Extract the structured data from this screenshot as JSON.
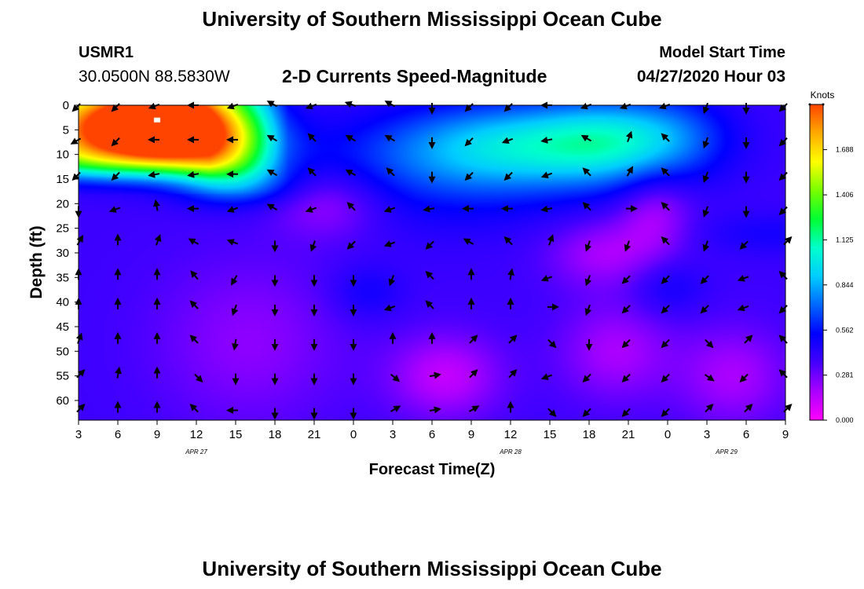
{
  "header": {
    "title": "University of Southern Mississippi Ocean Cube",
    "station": "USMR1",
    "coords": "30.0500N 88.5830W",
    "subtitle": "2-D Currents Speed-Magnitude",
    "model_label": "Model Start Time",
    "model_time": "04/27/2020 Hour 03"
  },
  "footer": {
    "title": "University of Southern Mississippi Ocean Cube"
  },
  "chart_data": {
    "type": "heatmap",
    "xlabel": "Forecast Time(Z)",
    "ylabel": "Depth (ft)",
    "x_tick_labels": [
      "3",
      "6",
      "9",
      "12",
      "15",
      "18",
      "21",
      "0",
      "3",
      "6",
      "9",
      "12",
      "15",
      "18",
      "21",
      "0",
      "3",
      "6",
      "9"
    ],
    "date_labels": [
      {
        "text": "APR 27",
        "tick_index": 3
      },
      {
        "text": "APR 28",
        "tick_index": 11
      },
      {
        "text": "APR 29",
        "tick_index": 16.5
      }
    ],
    "y_ticks": [
      0,
      5,
      10,
      15,
      20,
      25,
      30,
      35,
      40,
      45,
      50,
      55,
      60
    ],
    "ylim": [
      0,
      64
    ],
    "colorbar": {
      "title": "Knots",
      "ticks": [
        "0.000",
        "0.281",
        "0.562",
        "0.844",
        "1.125",
        "1.406",
        "1.688"
      ],
      "range": [
        0,
        1.97
      ],
      "colors": [
        "#ff00ff",
        "#aa00ff",
        "#4400ff",
        "#0000ff",
        "#0066ff",
        "#00ccff",
        "#00ffcc",
        "#00ff33",
        "#77ff00",
        "#ffff00",
        "#ffaa00",
        "#ff4400"
      ]
    },
    "speed_blobs": [
      {
        "t": 9,
        "d": 3,
        "sx": 2.4,
        "sd": 4.5,
        "v": 1.3,
        "note": "surface maximum"
      },
      {
        "t": 4.5,
        "d": 4,
        "sx": 3,
        "sd": 5,
        "v": 0.75
      },
      {
        "t": 14,
        "d": 5,
        "sx": 3,
        "sd": 6,
        "v": 0.75
      },
      {
        "t": 9,
        "d": 10,
        "sx": 6,
        "sd": 4,
        "v": 0.35
      },
      {
        "t": 15,
        "d": 16,
        "sx": 3,
        "sd": 3,
        "v": 0.3
      },
      {
        "t": 37,
        "d": 8,
        "sx": 7,
        "sd": 6,
        "v": 0.5
      },
      {
        "t": 44,
        "d": 7,
        "sx": 4,
        "sd": 6,
        "v": 0.35
      },
      {
        "t": 31,
        "d": 14,
        "sx": 8,
        "sd": 8,
        "v": 0.18
      },
      {
        "t": 49,
        "d": 6,
        "sx": 3,
        "sd": 6,
        "v": 0.15
      },
      {
        "t": 22,
        "d": 20,
        "sx": 3,
        "sd": 5,
        "v": -0.2
      },
      {
        "t": 47,
        "d": 22,
        "sx": 2,
        "sd": 6,
        "v": -0.2
      },
      {
        "t": 43,
        "d": 30,
        "sx": 3,
        "sd": 5,
        "v": -0.2
      },
      {
        "t": 31,
        "d": 55,
        "sx": 3,
        "sd": 6,
        "v": -0.25
      },
      {
        "t": 44,
        "d": 50,
        "sx": 3,
        "sd": 7,
        "v": -0.2
      },
      {
        "t": 53,
        "d": 55,
        "sx": 3,
        "sd": 7,
        "v": -0.2
      },
      {
        "t": 16,
        "d": 48,
        "sx": 5,
        "sd": 12,
        "v": -0.15
      },
      {
        "t": 25,
        "d": 38,
        "sx": 2,
        "sd": 4,
        "v": 0.12
      },
      {
        "t": 48,
        "d": 37,
        "sx": 2,
        "sd": 4,
        "v": 0.12
      },
      {
        "t": 56,
        "d": 26,
        "sx": 4,
        "sd": 3,
        "v": 0.1
      }
    ],
    "speed_base": 0.38,
    "arrow_depths": [
      0,
      7,
      14,
      21,
      28,
      35,
      41,
      48,
      55,
      62
    ],
    "arrow_times": [
      3,
      6,
      9,
      12,
      15,
      18,
      21,
      24,
      27,
      30,
      33,
      36,
      39,
      42,
      45,
      48,
      51,
      54,
      57
    ],
    "arrow_angles_deg": [
      [
        225,
        225,
        200,
        180,
        200,
        150,
        200,
        160,
        150,
        270,
        225,
        225,
        180,
        200,
        200,
        200,
        250,
        270,
        225
      ],
      [
        210,
        225,
        180,
        180,
        180,
        150,
        135,
        150,
        150,
        270,
        225,
        200,
        190,
        150,
        70,
        135,
        250,
        270,
        225
      ],
      [
        225,
        225,
        190,
        190,
        180,
        150,
        135,
        150,
        135,
        270,
        225,
        225,
        200,
        135,
        60,
        135,
        250,
        270,
        225
      ],
      [
        270,
        200,
        100,
        180,
        200,
        150,
        200,
        135,
        200,
        190,
        180,
        180,
        190,
        135,
        0,
        135,
        250,
        270,
        225
      ],
      [
        60,
        90,
        70,
        150,
        160,
        270,
        250,
        225,
        200,
        225,
        150,
        135,
        70,
        250,
        250,
        135,
        250,
        225,
        45
      ],
      [
        90,
        90,
        90,
        130,
        240,
        270,
        270,
        270,
        250,
        135,
        90,
        80,
        200,
        250,
        225,
        225,
        225,
        200,
        135
      ],
      [
        90,
        90,
        90,
        135,
        250,
        270,
        270,
        270,
        200,
        135,
        90,
        90,
        0,
        250,
        225,
        225,
        225,
        200,
        225
      ],
      [
        70,
        90,
        90,
        135,
        260,
        270,
        270,
        270,
        90,
        90,
        45,
        45,
        315,
        270,
        225,
        225,
        315,
        45,
        135
      ],
      [
        45,
        80,
        90,
        315,
        270,
        270,
        270,
        270,
        320,
        10,
        45,
        45,
        200,
        225,
        225,
        225,
        325,
        225,
        135
      ],
      [
        45,
        90,
        90,
        135,
        180,
        270,
        270,
        270,
        30,
        10,
        30,
        90,
        315,
        225,
        225,
        225,
        45,
        45,
        45
      ]
    ]
  }
}
